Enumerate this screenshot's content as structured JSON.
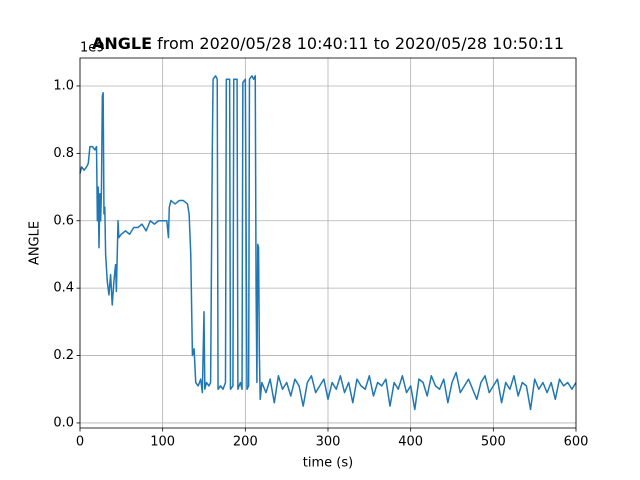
{
  "chart_data": {
    "type": "line",
    "title": {
      "bold": "ANGLE",
      "rest": "from 2020/05/28 10:40:11 to 2020/05/28 10:50:11"
    },
    "xlabel": "time (s)",
    "ylabel": "ANGLE",
    "offset_label": "1e9",
    "x": [
      0,
      2,
      5,
      8,
      10,
      12,
      15,
      18,
      20,
      21,
      22,
      23,
      24,
      25,
      26,
      27,
      28,
      29,
      30,
      31,
      33,
      35,
      37,
      39,
      41,
      43,
      44,
      46,
      47,
      50,
      55,
      60,
      65,
      70,
      75,
      80,
      85,
      90,
      95,
      100,
      105,
      107,
      108,
      110,
      115,
      120,
      125,
      130,
      132,
      134,
      136,
      138,
      140,
      143,
      146,
      148,
      150,
      151,
      153,
      156,
      158,
      160,
      161,
      164,
      166,
      167,
      170,
      173,
      176,
      177,
      181,
      182,
      185,
      186,
      190,
      191,
      194,
      196,
      197,
      200,
      202,
      204,
      205,
      208,
      210,
      212,
      213,
      214,
      215,
      216,
      217,
      218,
      220,
      225,
      230,
      235,
      240,
      245,
      250,
      255,
      260,
      265,
      270,
      275,
      280,
      285,
      290,
      295,
      300,
      305,
      310,
      315,
      320,
      325,
      330,
      335,
      340,
      345,
      350,
      355,
      360,
      365,
      370,
      375,
      380,
      385,
      390,
      395,
      400,
      405,
      410,
      415,
      420,
      425,
      430,
      435,
      440,
      445,
      450,
      455,
      460,
      465,
      470,
      475,
      480,
      485,
      490,
      495,
      500,
      505,
      510,
      515,
      520,
      525,
      530,
      535,
      540,
      545,
      550,
      555,
      560,
      565,
      570,
      575,
      580,
      585,
      590,
      595,
      600
    ],
    "series": [
      {
        "name": "ANGLE",
        "color": "#1f77b4",
        "values": [
          0.74,
          0.76,
          0.75,
          0.76,
          0.77,
          0.82,
          0.82,
          0.81,
          0.82,
          0.6,
          0.7,
          0.52,
          0.68,
          0.6,
          0.7,
          0.97,
          0.98,
          0.62,
          0.64,
          0.5,
          0.42,
          0.38,
          0.44,
          0.35,
          0.42,
          0.47,
          0.39,
          0.6,
          0.55,
          0.56,
          0.57,
          0.56,
          0.58,
          0.58,
          0.59,
          0.57,
          0.6,
          0.59,
          0.6,
          0.6,
          0.6,
          0.55,
          0.64,
          0.66,
          0.65,
          0.66,
          0.66,
          0.65,
          0.62,
          0.5,
          0.2,
          0.22,
          0.12,
          0.11,
          0.13,
          0.09,
          0.33,
          0.1,
          0.12,
          0.11,
          0.12,
          0.8,
          1.02,
          1.03,
          1.02,
          0.1,
          0.11,
          0.1,
          0.12,
          1.02,
          1.02,
          0.1,
          0.11,
          1.02,
          1.02,
          0.1,
          0.12,
          0.1,
          1.01,
          1.02,
          0.1,
          0.11,
          1.02,
          1.03,
          1.02,
          1.03,
          0.4,
          0.12,
          0.53,
          0.52,
          0.2,
          0.07,
          0.12,
          0.09,
          0.13,
          0.06,
          0.14,
          0.1,
          0.12,
          0.08,
          0.13,
          0.11,
          0.05,
          0.12,
          0.14,
          0.09,
          0.11,
          0.13,
          0.07,
          0.12,
          0.1,
          0.14,
          0.09,
          0.12,
          0.06,
          0.13,
          0.11,
          0.1,
          0.14,
          0.08,
          0.12,
          0.11,
          0.13,
          0.05,
          0.12,
          0.1,
          0.14,
          0.09,
          0.11,
          0.04,
          0.13,
          0.12,
          0.08,
          0.14,
          0.11,
          0.1,
          0.13,
          0.06,
          0.12,
          0.15,
          0.09,
          0.11,
          0.13,
          0.1,
          0.07,
          0.12,
          0.14,
          0.09,
          0.11,
          0.13,
          0.06,
          0.12,
          0.1,
          0.14,
          0.08,
          0.12,
          0.11,
          0.04,
          0.13,
          0.1,
          0.12,
          0.09,
          0.12,
          0.07,
          0.13,
          0.11,
          0.12,
          0.1,
          0.12
        ]
      }
    ],
    "xlim": [
      0,
      600
    ],
    "xticks": [
      0,
      100,
      200,
      300,
      400,
      500,
      600
    ],
    "ylim": [
      -0.015,
      1.083
    ],
    "yticks": [
      {
        "value": 0,
        "label": "0.0"
      },
      0.2,
      0.4,
      0.6,
      0.8,
      {
        "value": 1,
        "label": "1.0"
      }
    ],
    "grid": true
  }
}
